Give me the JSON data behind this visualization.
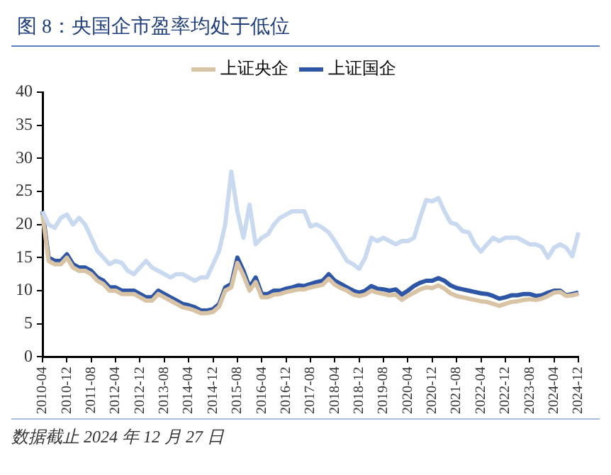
{
  "chart_data": {
    "type": "line",
    "title": "图 8：央国企市盈率均处于低位",
    "categories": [
      "2010-04",
      null,
      null,
      null,
      "2010-12",
      null,
      null,
      null,
      "2011-08",
      null,
      null,
      null,
      "2012-04",
      null,
      null,
      null,
      "2012-12",
      null,
      null,
      null,
      "2013-08",
      null,
      null,
      null,
      "2014-04",
      null,
      null,
      null,
      "2014-12",
      null,
      null,
      null,
      "2015-08",
      null,
      null,
      null,
      "2016-04",
      null,
      null,
      null,
      "2016-12",
      null,
      null,
      null,
      "2017-08",
      null,
      null,
      null,
      "2018-04",
      null,
      null,
      null,
      "2018-12",
      null,
      null,
      null,
      "2019-08",
      null,
      null,
      null,
      "2020-04",
      null,
      null,
      null,
      "2020-12",
      null,
      null,
      null,
      "2021-08",
      null,
      null,
      null,
      "2022-04",
      null,
      null,
      null,
      "2022-12",
      null,
      null,
      null,
      "2023-08",
      null,
      null,
      null,
      "2024-04",
      null,
      null,
      null,
      "2024-12"
    ],
    "series": [
      {
        "color": "#c9d9f0",
        "values": [
          22,
          20,
          19.5,
          21,
          21.5,
          20,
          21,
          20,
          18,
          16,
          15,
          14,
          14.5,
          14.2,
          13,
          12.5,
          13.5,
          14.5,
          13.5,
          13,
          12.5,
          12,
          12.5,
          12.5,
          12,
          11.5,
          12,
          12,
          14,
          16,
          20,
          28,
          22,
          18,
          23,
          17,
          18,
          18.5,
          20,
          21,
          21.5,
          22,
          22,
          22,
          19.7,
          20,
          19.5,
          18.8,
          17.5,
          16,
          14.5,
          14,
          13.3,
          15,
          18,
          17.5,
          18,
          17.5,
          17,
          17.5,
          17.5,
          18,
          21,
          23.7,
          23.5,
          24,
          22,
          20.3,
          20,
          19,
          18.8,
          17,
          15.9,
          17,
          18,
          17.5,
          18,
          18,
          18,
          17.5,
          17,
          17,
          16.6,
          15,
          16.5,
          17,
          16.5,
          15.2,
          18.8
        ]
      },
      {
        "name": "上证央企",
        "color": "#d9c3a5",
        "values": [
          21.5,
          14.5,
          14,
          14,
          15,
          13.5,
          13,
          13,
          12.5,
          11.5,
          11,
          10,
          10,
          9.5,
          9.5,
          9.5,
          9,
          8.5,
          8.5,
          9.5,
          9,
          8.5,
          8,
          7.5,
          7.3,
          7,
          6.6,
          6.6,
          6.8,
          7.6,
          10,
          10.5,
          14.2,
          12.3,
          10,
          11.3,
          9,
          9,
          9.4,
          9.5,
          9.8,
          10,
          10.2,
          10.2,
          10.5,
          10.7,
          10.9,
          11.8,
          10.9,
          10.4,
          10,
          9.4,
          9.2,
          9.4,
          10,
          9.7,
          9.5,
          9.3,
          9.4,
          8.6,
          9.2,
          9.7,
          10.2,
          10.5,
          10.4,
          10.8,
          10.3,
          9.6,
          9.2,
          9,
          8.8,
          8.6,
          8.4,
          8.3,
          8,
          7.7,
          8,
          8.3,
          8.4,
          8.6,
          8.7,
          8.6,
          8.8,
          9.2,
          9.7,
          9.8,
          9.2,
          9.3,
          9.5
        ]
      },
      {
        "name": "上证国企",
        "color": "#2e56a6",
        "values": [
          22,
          15,
          14.5,
          14.5,
          15.5,
          14,
          13.5,
          13.5,
          13,
          12,
          11.5,
          10.5,
          10.5,
          10,
          10,
          10,
          9.5,
          9,
          9,
          10,
          9.5,
          9,
          8.5,
          8,
          7.8,
          7.5,
          7,
          7,
          7.2,
          8,
          10.5,
          11,
          15,
          13,
          10.5,
          12,
          9.5,
          9.5,
          10,
          10,
          10.3,
          10.5,
          10.8,
          10.7,
          11,
          11.3,
          11.5,
          12.5,
          11.5,
          11,
          10.5,
          10,
          9.7,
          10,
          10.7,
          10.3,
          10.2,
          10,
          10.2,
          9.4,
          10,
          10.7,
          11.2,
          11.5,
          11.5,
          11.9,
          11.5,
          10.8,
          10.4,
          10.2,
          10,
          9.8,
          9.6,
          9.5,
          9.2,
          8.8,
          9,
          9.3,
          9.3,
          9.5,
          9.5,
          9.2,
          9.3,
          9.7,
          10,
          10,
          9.3,
          9.5,
          9.7
        ]
      }
    ],
    "ylim": [
      0,
      40
    ],
    "yticks": [
      0,
      5,
      10,
      15,
      20,
      25,
      30,
      35,
      40
    ],
    "grid": false,
    "legend": "top",
    "marker": "none",
    "annotations": [
      "数据截止 2024 年 12 月 27 日"
    ]
  }
}
